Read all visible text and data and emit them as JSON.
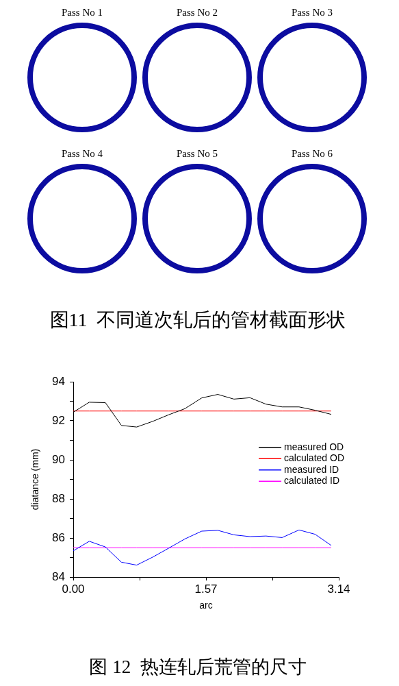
{
  "chart_data": [
    {
      "type": "other",
      "categories": [
        "Pass No 1",
        "Pass No 2",
        "Pass No 3",
        "Pass No 4",
        "Pass No 5",
        "Pass No 6"
      ],
      "annotations": [
        "图11  不同道次轧后的管材截面形状"
      ]
    },
    {
      "type": "line",
      "xlabel": "arc",
      "ylabel": "diatance (mm)",
      "x": [
        0,
        0.19,
        0.38,
        0.57,
        0.75,
        0.94,
        1.13,
        1.32,
        1.52,
        1.71,
        1.9,
        2.09,
        2.28,
        2.47,
        2.67,
        2.86,
        3.05
      ],
      "xlim": [
        0,
        3.14
      ],
      "xticks": [
        {
          "value": 0,
          "label": "0.00"
        },
        {
          "value": 0.785,
          "label": null
        },
        {
          "value": 1.57,
          "label": "1.57"
        },
        {
          "value": 2.355,
          "label": null
        },
        {
          "value": 3.14,
          "label": "3.14"
        }
      ],
      "ylim": [
        84,
        94
      ],
      "yticks": [
        84,
        {
          "value": 85,
          "label": null
        },
        86,
        {
          "value": 87,
          "label": null
        },
        88,
        {
          "value": 89,
          "label": null
        },
        90,
        {
          "value": 91,
          "label": null
        },
        92,
        {
          "value": 93,
          "label": null
        },
        94
      ],
      "series": [
        {
          "name": "measured OD",
          "color": "#000000",
          "values": [
            92.44,
            92.95,
            92.93,
            91.76,
            91.68,
            91.97,
            92.31,
            92.62,
            93.17,
            93.35,
            93.11,
            93.18,
            92.85,
            92.71,
            92.71,
            92.54,
            92.33
          ]
        },
        {
          "name": "calculated OD",
          "color": "#ff0000",
          "values": [
            92.5,
            92.5,
            92.5,
            92.5,
            92.5,
            92.5,
            92.5,
            92.5,
            92.5,
            92.5,
            92.5,
            92.5,
            92.5,
            92.5,
            92.5,
            92.5,
            92.5
          ]
        },
        {
          "name": "measured ID",
          "color": "#0000ff",
          "values": [
            85.34,
            85.83,
            85.54,
            84.76,
            84.61,
            85.02,
            85.48,
            85.95,
            86.35,
            86.39,
            86.16,
            86.07,
            86.1,
            86.02,
            86.41,
            86.19,
            85.62
          ]
        },
        {
          "name": "calculated ID",
          "color": "#ff00ff",
          "values": [
            85.5,
            85.5,
            85.5,
            85.5,
            85.5,
            85.5,
            85.5,
            85.5,
            85.5,
            85.5,
            85.5,
            85.5,
            85.5,
            85.5,
            85.5,
            85.5,
            85.5
          ]
        }
      ],
      "legend": "right",
      "annotations": [
        "图 12  热连轧后荒管的尺寸"
      ]
    }
  ]
}
